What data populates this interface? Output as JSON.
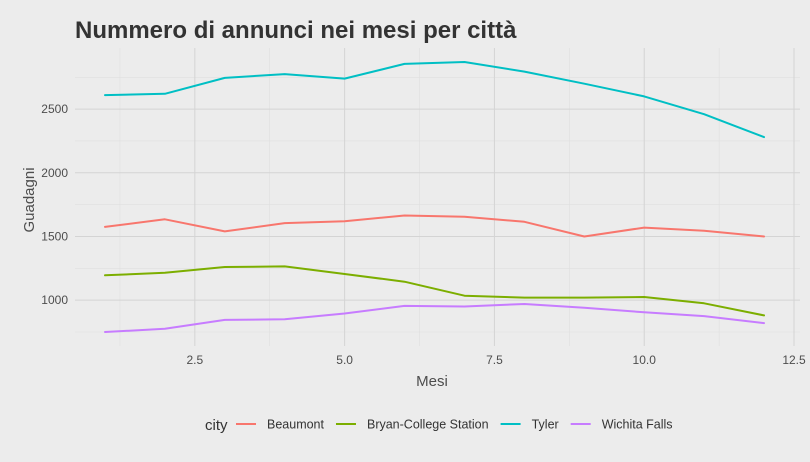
{
  "chart_data": {
    "type": "line",
    "title": "Nummero di annunci nei mesi per città",
    "xlabel": "Mesi",
    "ylabel": "Guadagni",
    "x": [
      1,
      2,
      3,
      4,
      5,
      6,
      7,
      8,
      9,
      10,
      11,
      12
    ],
    "xlim": [
      0.5,
      12.6
    ],
    "ylim": [
      640,
      2980
    ],
    "x_ticks": [
      2.5,
      5.0,
      7.5,
      10.0,
      12.5
    ],
    "x_tick_labels": [
      "2.5",
      "5.0",
      "7.5",
      "10.0",
      "12.5"
    ],
    "y_ticks": [
      1000,
      1500,
      2000,
      2500
    ],
    "y_tick_labels": [
      "1000",
      "1500",
      "2000",
      "2500"
    ],
    "grid": true,
    "legend_title": "city",
    "legend_position": "bottom",
    "series": [
      {
        "name": "Beaumont",
        "color": "#F8766D",
        "values": [
          1575,
          1635,
          1540,
          1605,
          1620,
          1665,
          1655,
          1615,
          1500,
          1570,
          1545,
          1500
        ]
      },
      {
        "name": "Bryan-College Station",
        "color": "#7CAE00",
        "values": [
          1195,
          1215,
          1260,
          1265,
          1205,
          1145,
          1035,
          1020,
          1020,
          1025,
          975,
          880
        ]
      },
      {
        "name": "Tyler",
        "color": "#00BFC4",
        "values": [
          2610,
          2620,
          2745,
          2775,
          2740,
          2855,
          2870,
          2795,
          2700,
          2600,
          2460,
          2280
        ]
      },
      {
        "name": "Wichita Falls",
        "color": "#C77CFF",
        "values": [
          750,
          775,
          845,
          850,
          895,
          955,
          950,
          970,
          940,
          905,
          875,
          820
        ]
      }
    ]
  }
}
